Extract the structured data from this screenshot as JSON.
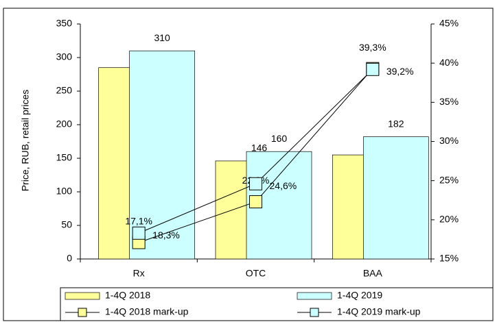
{
  "chart_data": {
    "type": "bar",
    "ylabel": "Price, RUB, retail prices",
    "categories": [
      "Rx",
      "OTC",
      "BAA"
    ],
    "ylim": [
      0,
      350
    ],
    "yticks": [
      0,
      50,
      100,
      150,
      200,
      250,
      300,
      350
    ],
    "y2lim": [
      15,
      45
    ],
    "y2ticks": [
      {
        "value": 15,
        "label": "15%"
      },
      {
        "value": 20,
        "label": "20%"
      },
      {
        "value": 25,
        "label": "25%"
      },
      {
        "value": 30,
        "label": "30%"
      },
      {
        "value": 35,
        "label": "35%"
      },
      {
        "value": 40,
        "label": "40%"
      },
      {
        "value": 45,
        "label": "45%"
      }
    ],
    "grid": false,
    "series": [
      {
        "name": "1-4Q 2018",
        "type": "bar",
        "color": "#ffff99",
        "values": [
          285,
          146,
          155
        ]
      },
      {
        "name": "1-4Q 2019",
        "type": "bar",
        "color": "#ccffff",
        "values": [
          310,
          160,
          182
        ]
      },
      {
        "name": "1-4Q 2018 mark-up",
        "type": "line",
        "axis": "y2",
        "color": "#ffff99",
        "values": [
          17.1,
          22.3,
          39.3
        ],
        "value_labels": [
          "17,1%",
          "22,3%",
          "39,3%"
        ]
      },
      {
        "name": "1-4Q 2019 mark-up",
        "type": "line",
        "axis": "y2",
        "color": "#ccffff",
        "values": [
          18.3,
          24.6,
          39.2
        ],
        "value_labels": [
          "18,3%",
          "24,6%",
          "39,2%"
        ]
      }
    ]
  }
}
